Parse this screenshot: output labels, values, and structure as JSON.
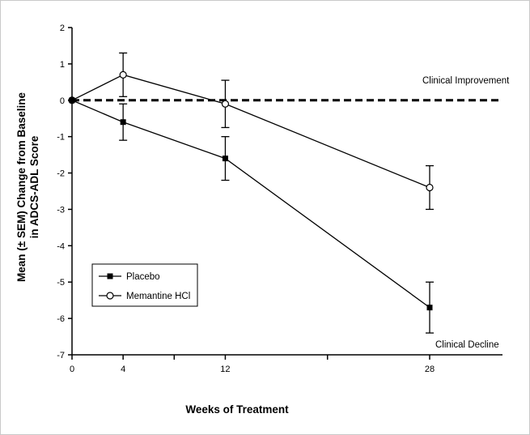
{
  "chart_data": {
    "type": "line",
    "title": "",
    "xlabel": "Weeks of Treatment",
    "ylabel_line1": "Mean (± SEM) Change from Baseline",
    "ylabel_line2": "in ADCS-ADL Score",
    "ylim": [
      -7,
      2
    ],
    "xlim": [
      0,
      33.8
    ],
    "grid": false,
    "legend_position": "lower-left-inside",
    "yticks": [
      2,
      1,
      0,
      -1,
      -2,
      -3,
      -4,
      -5,
      -6,
      -7
    ],
    "xticks": [
      {
        "w": 0,
        "label": "0"
      },
      {
        "w": 4,
        "label": "4"
      },
      {
        "w": 8,
        "label": ""
      },
      {
        "w": 12,
        "label": "12"
      },
      {
        "w": 20,
        "label": ""
      },
      {
        "w": 28,
        "label": "28"
      }
    ],
    "zero_reference_line": {
      "y": 0,
      "style": "dashed"
    },
    "series": [
      {
        "name": "Placebo",
        "marker": "filled-square",
        "x": [
          0,
          4,
          12,
          28
        ],
        "y": [
          0,
          -0.6,
          -1.6,
          -5.7
        ],
        "sem": [
          0,
          0.5,
          0.6,
          0.7
        ]
      },
      {
        "name": "Memantine HCl",
        "marker": "open-circle",
        "x": [
          0,
          4,
          12,
          28
        ],
        "y": [
          0,
          0.7,
          -0.1,
          -2.4
        ],
        "sem": [
          0,
          0.6,
          0.65,
          0.6
        ]
      }
    ],
    "annotations": {
      "improvement": "Clinical Improvement",
      "decline": "Clinical Decline"
    },
    "colors": {
      "foreground": "#000000",
      "background": "#ffffff"
    }
  }
}
